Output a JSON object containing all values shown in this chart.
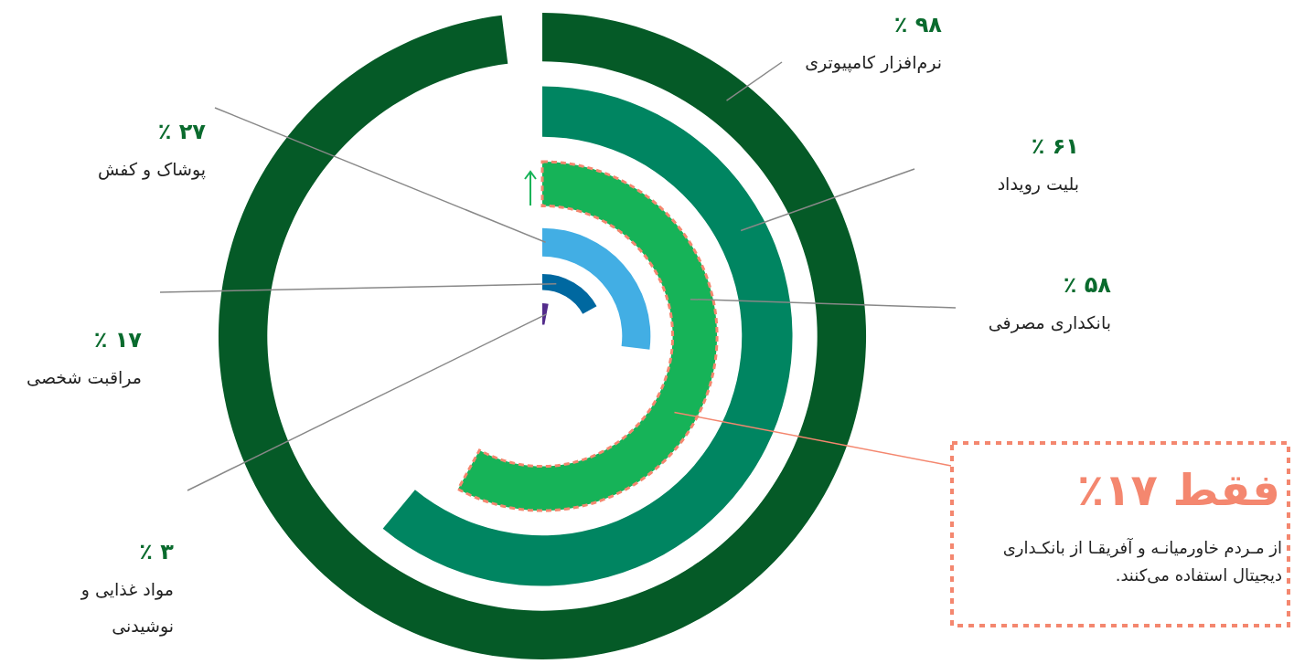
{
  "chart_data": {
    "type": "other",
    "categories": [
      "نرم‌افزار کامپیوتری",
      "بلیت رویداد",
      "بانکداری مصرفی",
      "پوشاک و کفش",
      "مراقبت شخصی",
      "مواد غذایی و نوشیدنی"
    ],
    "values": [
      98,
      61,
      58,
      27,
      17,
      3
    ],
    "colors": [
      "#055a27",
      "#008561",
      "#16b358",
      "#42aee4",
      "#0068a0",
      "#532c8b"
    ],
    "value_labels": [
      "۹۸ ٪",
      "۶۱ ٪",
      "۵۸ ٪",
      "۲۷ ٪",
      "۱۷ ٪",
      "۳ ٪"
    ],
    "annotations": [
      {
        "text": "فقط ۱۷٪",
        "x": "بانکداری مصرفی"
      },
      "از مـردم خاورمیانـه و آفریقـا از بانکـداری دیجیتال استفاده می‌کنند."
    ]
  }
}
